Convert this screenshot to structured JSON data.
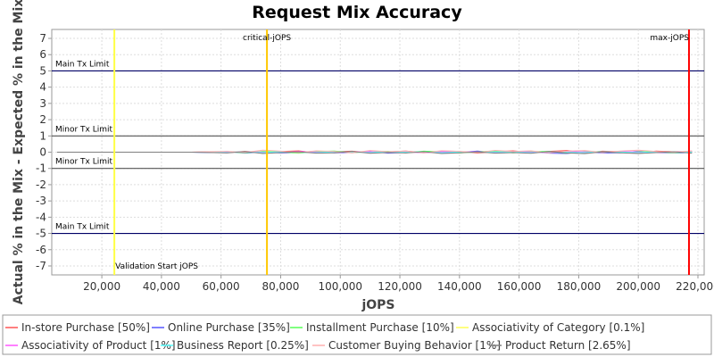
{
  "chart_data": {
    "type": "line",
    "title": "Request Mix Accuracy",
    "x_label": "jOPS",
    "y_label": "Actual % in the Mix - Expected % in the Mix",
    "x": [
      5000,
      20000,
      35000,
      50000,
      56000,
      62000,
      68000,
      74000,
      80000,
      86000,
      92000,
      98000,
      104000,
      110000,
      116000,
      122000,
      128000,
      134000,
      140000,
      146000,
      152000,
      158000,
      164000,
      170000,
      176000,
      182000,
      188000,
      194000,
      200000,
      206000,
      212000,
      218000
    ],
    "series": [
      {
        "name": "In-store Purchase [50%]",
        "color": "#ff5555",
        "values": [
          0,
          0,
          0,
          0,
          0.02,
          -0.03,
          0.05,
          -0.02,
          0.04,
          0.08,
          -0.05,
          0.03,
          0.06,
          -0.04,
          0.02,
          0.07,
          -0.03,
          0.05,
          0.04,
          -0.06,
          0.03,
          0.08,
          -0.02,
          0.05,
          0.1,
          -0.04,
          0.06,
          0.03,
          -0.05,
          0.07,
          0.02,
          0.04
        ]
      },
      {
        "name": "Online Purchase [35%]",
        "color": "#5555ff",
        "values": [
          0,
          0,
          0,
          0,
          -0.03,
          0.04,
          -0.06,
          0.02,
          -0.05,
          -0.02,
          0.06,
          -0.04,
          -0.03,
          0.05,
          -0.06,
          -0.02,
          0.04,
          -0.05,
          -0.03,
          0.07,
          -0.04,
          -0.02,
          0.05,
          -0.06,
          -0.08,
          0.03,
          -0.05,
          -0.04,
          0.06,
          -0.03,
          -0.05,
          -0.02
        ]
      },
      {
        "name": "Installment Purchase [10%]",
        "color": "#55ff55",
        "values": [
          0,
          0,
          0,
          0,
          0.01,
          0.03,
          -0.04,
          0.05,
          0.02,
          -0.06,
          0.04,
          0.07,
          -0.03,
          0.02,
          0.05,
          -0.04,
          0.06,
          0.03,
          -0.05,
          0.02,
          0.07,
          -0.04,
          0.03,
          0.05,
          -0.06,
          0.04,
          0.02,
          -0.03,
          0.05,
          0.01,
          -0.04,
          0.03
        ]
      },
      {
        "name": "Associativity of Category [0.1%]",
        "color": "#ffff55",
        "values": [
          0,
          0,
          0,
          0,
          0,
          0,
          0,
          0.01,
          0,
          0,
          -0.01,
          0,
          0,
          0.01,
          0,
          0,
          0,
          0,
          0.01,
          0,
          0,
          0,
          -0.01,
          0,
          0,
          0,
          0,
          0.01,
          0,
          0,
          0,
          0
        ]
      },
      {
        "name": "Associativity of Product [1%]",
        "color": "#ff55ff",
        "values": [
          0,
          0,
          0,
          0,
          0.01,
          -0.02,
          0.03,
          0.01,
          -0.02,
          0.04,
          0.01,
          -0.03,
          0.02,
          0.03,
          -0.01,
          0.02,
          -0.04,
          0.03,
          0.01,
          0.02,
          -0.03,
          0.04,
          0.01,
          -0.02,
          0.03,
          0.02,
          -0.01,
          0.04,
          0.02,
          -0.03,
          0.01,
          0.02
        ]
      },
      {
        "name": "Business Report [0.25%]",
        "color": "#55ffff",
        "values": [
          0,
          0,
          0,
          0,
          -0.01,
          0.02,
          0.01,
          -0.02,
          0.03,
          -0.01,
          -0.03,
          0.02,
          0.01,
          -0.02,
          0.03,
          -0.01,
          0.02,
          -0.03,
          0.01,
          -0.02,
          0.02,
          0.01,
          -0.03,
          0.02,
          -0.01,
          -0.02,
          0.03,
          0.01,
          -0.02,
          0.02,
          -0.01,
          0.01
        ]
      },
      {
        "name": "Customer Buying Behavior [1%]",
        "color": "#ffafaf",
        "values": [
          0,
          0,
          0,
          0,
          0.03,
          0.05,
          -0.02,
          0.12,
          0.06,
          -0.03,
          0.08,
          0.04,
          -0.05,
          0.1,
          0.03,
          0.07,
          -0.04,
          0.09,
          0.05,
          -0.03,
          0.11,
          0.04,
          0.08,
          -0.05,
          0.06,
          0.1,
          -0.03,
          0.07,
          0.12,
          0.04,
          -0.02,
          0.08
        ]
      },
      {
        "name": "Product Return [2.65%]",
        "color": "#808080",
        "values": [
          0,
          0,
          0,
          0,
          -0.02,
          -0.05,
          0.04,
          -0.08,
          -0.03,
          0.02,
          -0.06,
          -0.04,
          0.05,
          -0.07,
          -0.02,
          -0.05,
          0.03,
          -0.08,
          -0.04,
          0.02,
          -0.06,
          -0.03,
          -0.07,
          0.04,
          -0.05,
          -0.09,
          0.02,
          -0.04,
          -0.08,
          -0.03,
          0.03,
          -0.06
        ]
      }
    ],
    "xlim": [
      3200,
      222100
    ],
    "ylim": [
      -7.55,
      7.55
    ],
    "xticks": [
      {
        "value": 20000,
        "label": "20,000"
      },
      {
        "value": 40000,
        "label": "40,000"
      },
      {
        "value": 60000,
        "label": "60,000"
      },
      {
        "value": 80000,
        "label": "80,000"
      },
      {
        "value": 100000,
        "label": "100,000"
      },
      {
        "value": 120000,
        "label": "120,000"
      },
      {
        "value": 140000,
        "label": "140,000"
      },
      {
        "value": 160000,
        "label": "160,000"
      },
      {
        "value": 180000,
        "label": "180,000"
      },
      {
        "value": 200000,
        "label": "200,000"
      },
      {
        "value": 220000,
        "label": "220,000"
      }
    ],
    "yticks": [
      -7,
      -6,
      -5,
      -4,
      -3,
      -2,
      -1,
      0,
      1,
      2,
      3,
      4,
      5,
      6,
      7
    ],
    "grid": true,
    "horizontal_markers": [
      {
        "value": 5,
        "label": "Main Tx Limit",
        "color": "#000066"
      },
      {
        "value": 1,
        "label": "Minor Tx Limit",
        "color": "#555555"
      },
      {
        "value": -1,
        "label": "Minor Tx Limit",
        "color": "#555555"
      },
      {
        "value": -5,
        "label": "Main Tx Limit",
        "color": "#000066"
      }
    ],
    "vertical_markers": [
      {
        "value": 24200,
        "label": "Validation Start jOPS",
        "color": "#ffff44"
      },
      {
        "value": 75400,
        "label": "critical-jOPS",
        "color": "#ffc800"
      },
      {
        "value": 217000,
        "label": "max-jOPS",
        "color": "#ff0000"
      }
    ]
  }
}
